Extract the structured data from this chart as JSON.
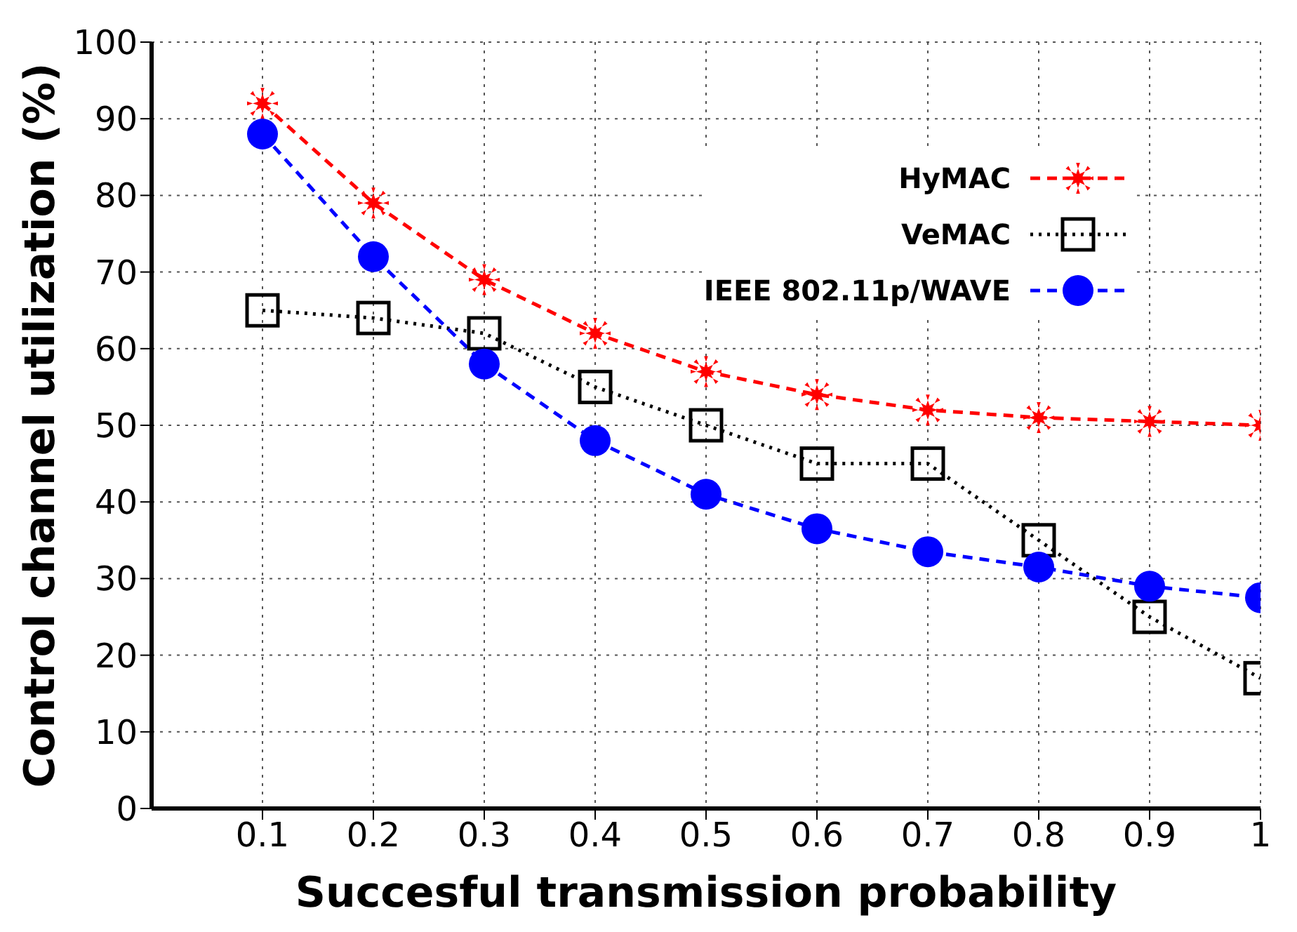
{
  "chart_data": {
    "type": "line",
    "xlabel": "Succesful transmission probability",
    "ylabel": "Control channel utilization (%)",
    "x": [
      0.1,
      0.2,
      0.3,
      0.4,
      0.5,
      0.6,
      0.7,
      0.8,
      0.9,
      1
    ],
    "series": [
      {
        "name": "HyMAC",
        "color": "#ff0000",
        "marker": "star",
        "line_style": "dashed",
        "values": [
          92,
          79,
          69,
          62,
          57,
          54,
          52,
          51,
          50.5,
          50
        ]
      },
      {
        "name": "VeMAC",
        "color": "#000000",
        "marker": "square",
        "line_style": "dotted",
        "values": [
          65,
          64,
          62,
          55,
          50,
          45,
          45,
          35,
          25,
          17
        ]
      },
      {
        "name": "IEEE 802.11p/WAVE",
        "color": "#0000ff",
        "marker": "circle",
        "line_style": "dashed",
        "values": [
          88,
          72,
          58,
          48,
          41,
          36.5,
          33.5,
          31.5,
          29,
          27.5
        ]
      }
    ],
    "xlim": [
      0,
      1
    ],
    "xticks": [
      0.1,
      0.2,
      0.3,
      0.4,
      0.5,
      0.6,
      0.7,
      0.8,
      0.9,
      1
    ],
    "ylim": [
      0,
      100
    ],
    "yticks": [
      0,
      10,
      20,
      30,
      40,
      50,
      60,
      70,
      80,
      90,
      100
    ],
    "grid": true,
    "legend": "top right"
  }
}
